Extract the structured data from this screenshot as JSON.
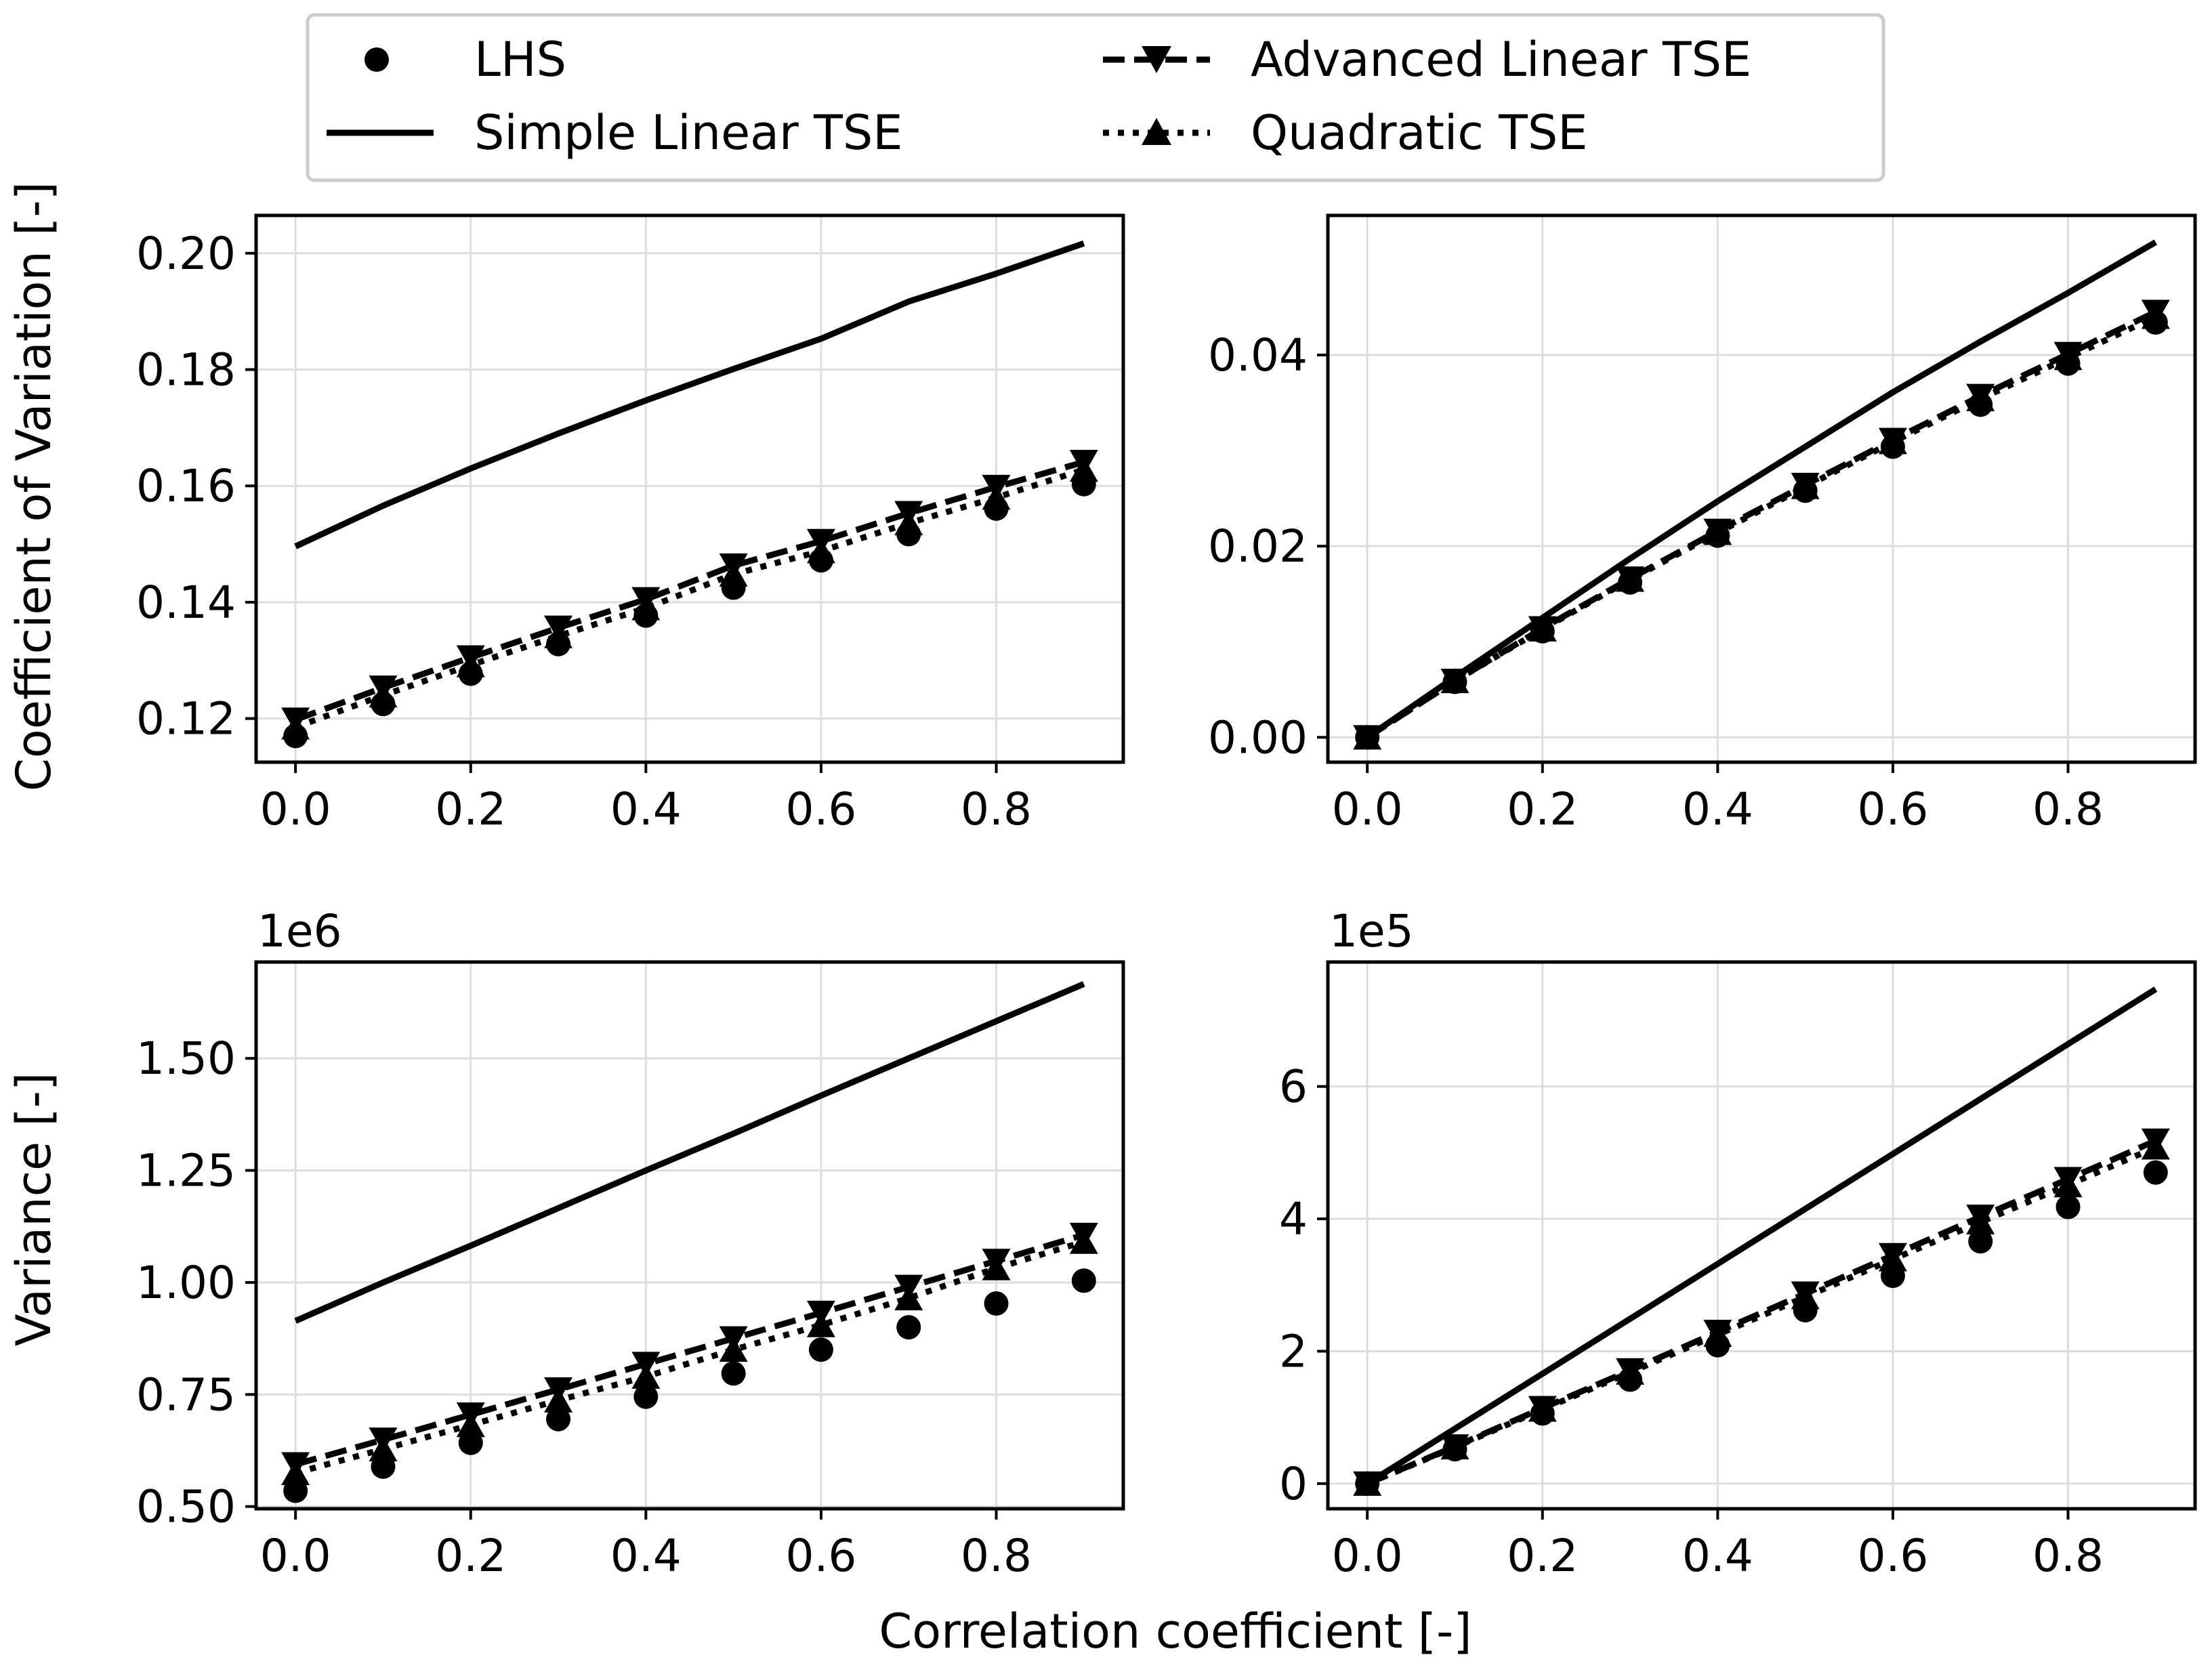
{
  "chart_data": [
    {
      "id": "top-left",
      "type": "line",
      "ylabel": "Coefficient of Variation [-]",
      "xlabel": "",
      "offset_text": "",
      "xlim": [
        -0.045,
        0.945
      ],
      "ylim": [
        0.1125,
        0.2065
      ],
      "xticks": [
        0.0,
        0.2,
        0.4,
        0.6,
        0.8
      ],
      "xtick_labels": [
        "0.0",
        "0.2",
        "0.4",
        "0.6",
        "0.8"
      ],
      "yticks": [
        0.12,
        0.14,
        0.16,
        0.18,
        0.2
      ],
      "ytick_labels": [
        "0.12",
        "0.14",
        "0.16",
        "0.18",
        "0.20"
      ],
      "grid": true,
      "x": [
        0.0,
        0.1,
        0.2,
        0.3,
        0.4,
        0.5,
        0.6,
        0.7,
        0.8,
        0.9
      ],
      "series": [
        {
          "name": "LHS",
          "style": "markers-circle",
          "values": [
            0.117,
            0.1225,
            0.1277,
            0.1328,
            0.1377,
            0.1425,
            0.1472,
            0.1517,
            0.1561,
            0.1603
          ]
        },
        {
          "name": "Simple Linear TSE",
          "style": "solid",
          "values": [
            0.1496,
            0.1566,
            0.163,
            0.169,
            0.1747,
            0.1801,
            0.1853,
            0.1917,
            0.1965,
            0.2017
          ]
        },
        {
          "name": "Advanced Linear TSE",
          "style": "dashed-triangle-down",
          "values": [
            0.1198,
            0.1253,
            0.1305,
            0.1356,
            0.1405,
            0.1463,
            0.1505,
            0.1553,
            0.1598,
            0.1641
          ]
        },
        {
          "name": "Quadratic TSE",
          "style": "dotted-triangle-up",
          "values": [
            0.1185,
            0.124,
            0.1292,
            0.1342,
            0.139,
            0.1448,
            0.1488,
            0.1536,
            0.158,
            0.1628
          ]
        }
      ]
    },
    {
      "id": "top-right",
      "type": "line",
      "ylabel": "",
      "xlabel": "",
      "offset_text": "",
      "xlim": [
        -0.045,
        0.945
      ],
      "ylim": [
        -0.0026,
        0.0546
      ],
      "xticks": [
        0.0,
        0.2,
        0.4,
        0.6,
        0.8
      ],
      "xtick_labels": [
        "0.0",
        "0.2",
        "0.4",
        "0.6",
        "0.8"
      ],
      "yticks": [
        0.0,
        0.02,
        0.04
      ],
      "ytick_labels": [
        "0.00",
        "0.02",
        "0.04"
      ],
      "grid": true,
      "x": [
        0.0,
        0.1,
        0.2,
        0.3,
        0.4,
        0.5,
        0.6,
        0.7,
        0.8,
        0.9
      ],
      "series": [
        {
          "name": "LHS",
          "style": "markers-circle",
          "values": [
            0.0,
            0.0058,
            0.0111,
            0.0162,
            0.0211,
            0.0258,
            0.0304,
            0.0348,
            0.0391,
            0.0434
          ]
        },
        {
          "name": "Simple Linear TSE",
          "style": "solid",
          "values": [
            0.0,
            0.0063,
            0.0125,
            0.0187,
            0.0247,
            0.0304,
            0.0361,
            0.0414,
            0.0465,
            0.0518
          ]
        },
        {
          "name": "Advanced Linear TSE",
          "style": "dashed-triangle-down",
          "values": [
            0.0,
            0.0059,
            0.0114,
            0.0166,
            0.0216,
            0.0264,
            0.0311,
            0.0357,
            0.0401,
            0.0445
          ]
        },
        {
          "name": "Quadratic TSE",
          "style": "dotted-triangle-up",
          "values": [
            0.0,
            0.0059,
            0.0113,
            0.0165,
            0.0214,
            0.0262,
            0.0309,
            0.0354,
            0.0397,
            0.044
          ]
        }
      ]
    },
    {
      "id": "bottom-left",
      "type": "line",
      "ylabel": "Variance [-]",
      "xlabel": "",
      "offset_text": "1e6",
      "xlim": [
        -0.045,
        0.945
      ],
      "ylim": [
        0.495,
        1.715
      ],
      "xticks": [
        0.0,
        0.2,
        0.4,
        0.6,
        0.8
      ],
      "xtick_labels": [
        "0.0",
        "0.2",
        "0.4",
        "0.6",
        "0.8"
      ],
      "yticks": [
        0.5,
        0.75,
        1.0,
        1.25,
        1.5
      ],
      "ytick_labels": [
        "0.50",
        "0.75",
        "1.00",
        "1.25",
        "1.50"
      ],
      "grid": true,
      "x": [
        0.0,
        0.1,
        0.2,
        0.3,
        0.4,
        0.5,
        0.6,
        0.7,
        0.8,
        0.9
      ],
      "series": [
        {
          "name": "LHS",
          "style": "markers-circle",
          "values": [
            0.535,
            0.589,
            0.642,
            0.695,
            0.745,
            0.797,
            0.85,
            0.9,
            0.953,
            1.004
          ]
        },
        {
          "name": "Simple Linear TSE",
          "style": "solid",
          "values": [
            0.914,
            1.0,
            1.082,
            1.166,
            1.25,
            1.332,
            1.417,
            1.5,
            1.583,
            1.666
          ]
        },
        {
          "name": "Advanced Linear TSE",
          "style": "dashed-triangle-down",
          "values": [
            0.594,
            0.649,
            0.705,
            0.761,
            0.818,
            0.875,
            0.932,
            0.99,
            1.048,
            1.106
          ]
        },
        {
          "name": "Quadratic TSE",
          "style": "dotted-triangle-up",
          "values": [
            0.575,
            0.628,
            0.682,
            0.737,
            0.79,
            0.85,
            0.905,
            0.965,
            1.032,
            1.091
          ]
        }
      ]
    },
    {
      "id": "bottom-right",
      "type": "line",
      "ylabel": "",
      "xlabel": "Correlation coefficient [-]",
      "offset_text": "1e5",
      "xlim": [
        -0.045,
        0.945
      ],
      "ylim": [
        -0.38,
        7.88
      ],
      "xticks": [
        0.0,
        0.2,
        0.4,
        0.6,
        0.8
      ],
      "xtick_labels": [
        "0.0",
        "0.2",
        "0.4",
        "0.6",
        "0.8"
      ],
      "yticks": [
        0,
        2,
        4,
        6
      ],
      "ytick_labels": [
        "0",
        "2",
        "4",
        "6"
      ],
      "grid": true,
      "x": [
        0.0,
        0.1,
        0.2,
        0.3,
        0.4,
        0.5,
        0.6,
        0.7,
        0.8,
        0.9
      ],
      "series": [
        {
          "name": "LHS",
          "style": "markers-circle",
          "values": [
            0.0,
            0.52,
            1.06,
            1.57,
            2.09,
            2.62,
            3.14,
            3.66,
            4.18,
            4.7
          ]
        },
        {
          "name": "Simple Linear TSE",
          "style": "solid",
          "values": [
            0.0,
            0.83,
            1.66,
            2.49,
            3.32,
            4.15,
            4.98,
            5.81,
            6.64,
            7.47
          ]
        },
        {
          "name": "Advanced Linear TSE",
          "style": "dashed-triangle-down",
          "values": [
            0.0,
            0.56,
            1.14,
            1.71,
            2.29,
            2.87,
            3.45,
            4.03,
            4.6,
            5.18
          ]
        },
        {
          "name": "Quadratic TSE",
          "style": "dotted-triangle-up",
          "values": [
            0.0,
            0.55,
            1.12,
            1.68,
            2.25,
            2.82,
            3.39,
            3.95,
            4.51,
            5.08
          ]
        }
      ]
    }
  ],
  "legend": {
    "placement": "top-center",
    "entries": [
      {
        "label": "LHS",
        "style": "markers-circle"
      },
      {
        "label": "Simple Linear TSE",
        "style": "solid"
      },
      {
        "label": "Advanced Linear TSE",
        "style": "dashed-triangle-down"
      },
      {
        "label": "Quadratic TSE",
        "style": "dotted-triangle-up"
      }
    ]
  },
  "colors": {
    "ink": "#000000",
    "grid": "#dddddd",
    "legend_border": "#cccccc",
    "background": "#ffffff"
  }
}
